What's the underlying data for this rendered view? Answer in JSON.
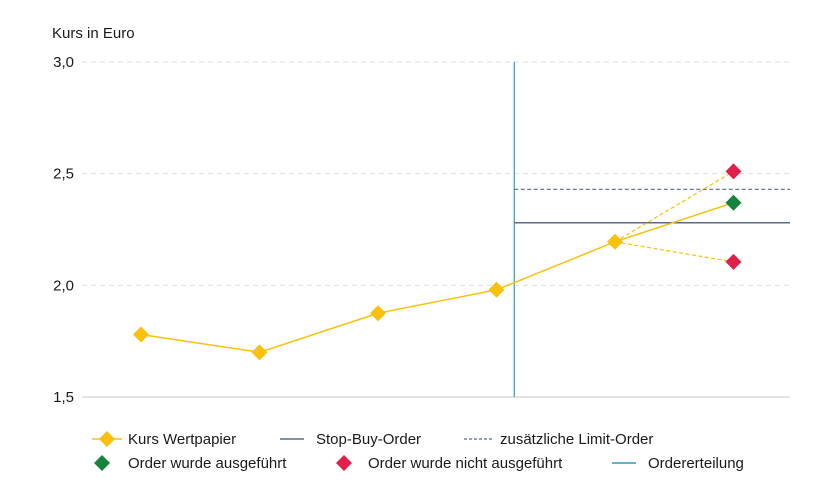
{
  "chart_data": {
    "type": "line",
    "ylabel": "Kurs in Euro",
    "ylim": [
      1.5,
      3.0
    ],
    "yticks": [
      1.5,
      2.0,
      2.5,
      3.0
    ],
    "ytick_labels": [
      "1,5",
      "2,0",
      "2,5",
      "3,0"
    ],
    "x_count": 6,
    "series": [
      {
        "name": "Kurs Wertpapier",
        "x": [
          0,
          1,
          2,
          3,
          4
        ],
        "values": [
          1.78,
          1.7,
          1.875,
          1.98,
          2.195
        ]
      }
    ],
    "stop_buy_level": 2.28,
    "limit_level": 2.43,
    "order_time_x": 3.15,
    "executed_point": {
      "x": 5,
      "value": 2.37
    },
    "not_executed_points": [
      {
        "x": 5,
        "value": 2.51
      },
      {
        "x": 5,
        "value": 2.105
      }
    ],
    "grid": true,
    "legend_position": "bottom",
    "colors": {
      "kurs": "#f9c00c",
      "stop": "#5b6a89",
      "limit": "#5b6a89",
      "order": "#2a9fbf",
      "executed": "#14853b",
      "not_executed": "#e0204a",
      "grid": "#dddddd"
    }
  },
  "legend": {
    "kurs": "Kurs Wertpapier",
    "stop": "Stop-Buy-Order",
    "limit": "zusätzliche Limit-Order",
    "executed": "Order wurde ausgeführt",
    "not_executed": "Order wurde nicht ausgeführt",
    "order": "Ordererteilung"
  }
}
